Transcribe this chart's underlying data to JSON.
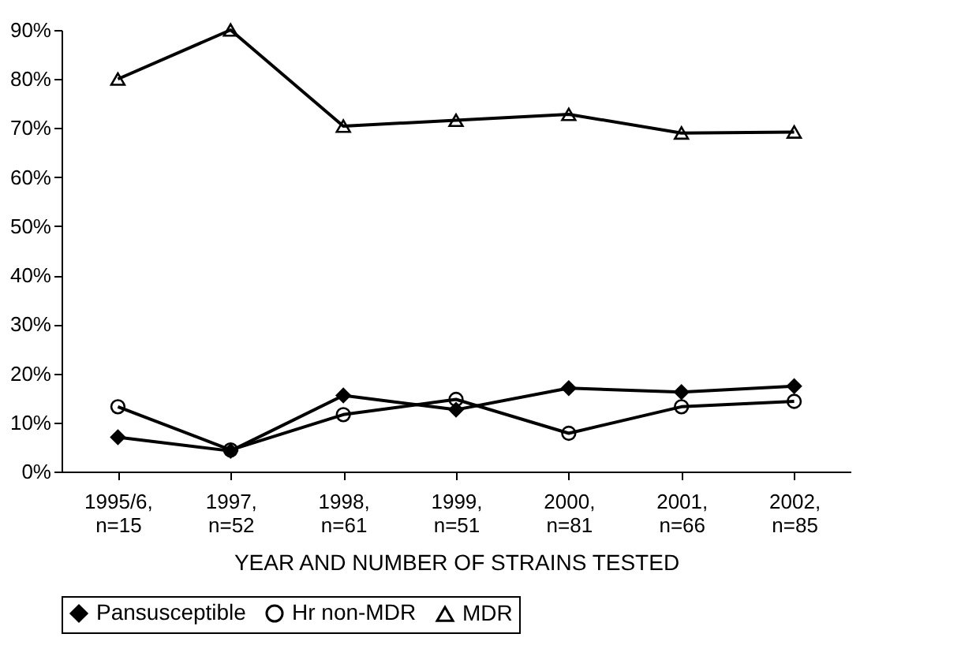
{
  "chart_data": {
    "type": "line",
    "xlabel": "YEAR AND NUMBER OF STRAINS TESTED",
    "categories": [
      "1995/6,\nn=15",
      "1997,\nn=52",
      "1998,\nn=61",
      "1999,\nn=51",
      "2000,\nn=81",
      "2001,\nn=66",
      "2002,\nn=85"
    ],
    "series": [
      {
        "name": "Pansusceptible",
        "color": "#000000",
        "marker": "diamond",
        "values": [
          7,
          4.2,
          15.5,
          12.6,
          17,
          16.2,
          17.4
        ]
      },
      {
        "name": "Hr non-MDR",
        "color": "#000000",
        "marker": "circle",
        "values": [
          13.2,
          4.4,
          11.6,
          14.7,
          7.8,
          13.2,
          14.3
        ]
      },
      {
        "name": "MDR",
        "color": "#000000",
        "marker": "triangle",
        "values": [
          80,
          90,
          70.4,
          71.6,
          72.8,
          69,
          69.2
        ]
      }
    ],
    "ylim": [
      0,
      90
    ],
    "yticks": [
      {
        "value": 0,
        "label": "0%"
      },
      {
        "value": 10,
        "label": "10%"
      },
      {
        "value": 20,
        "label": "20%"
      },
      {
        "value": 30,
        "label": "30%"
      },
      {
        "value": 40,
        "label": "40%"
      },
      {
        "value": 50,
        "label": "50%"
      },
      {
        "value": 60,
        "label": "60%"
      },
      {
        "value": 70,
        "label": "70%"
      },
      {
        "value": 80,
        "label": "80%"
      },
      {
        "value": 90,
        "label": "90%"
      }
    ],
    "grid": false,
    "legend": "bottom",
    "line_style": "solid"
  }
}
